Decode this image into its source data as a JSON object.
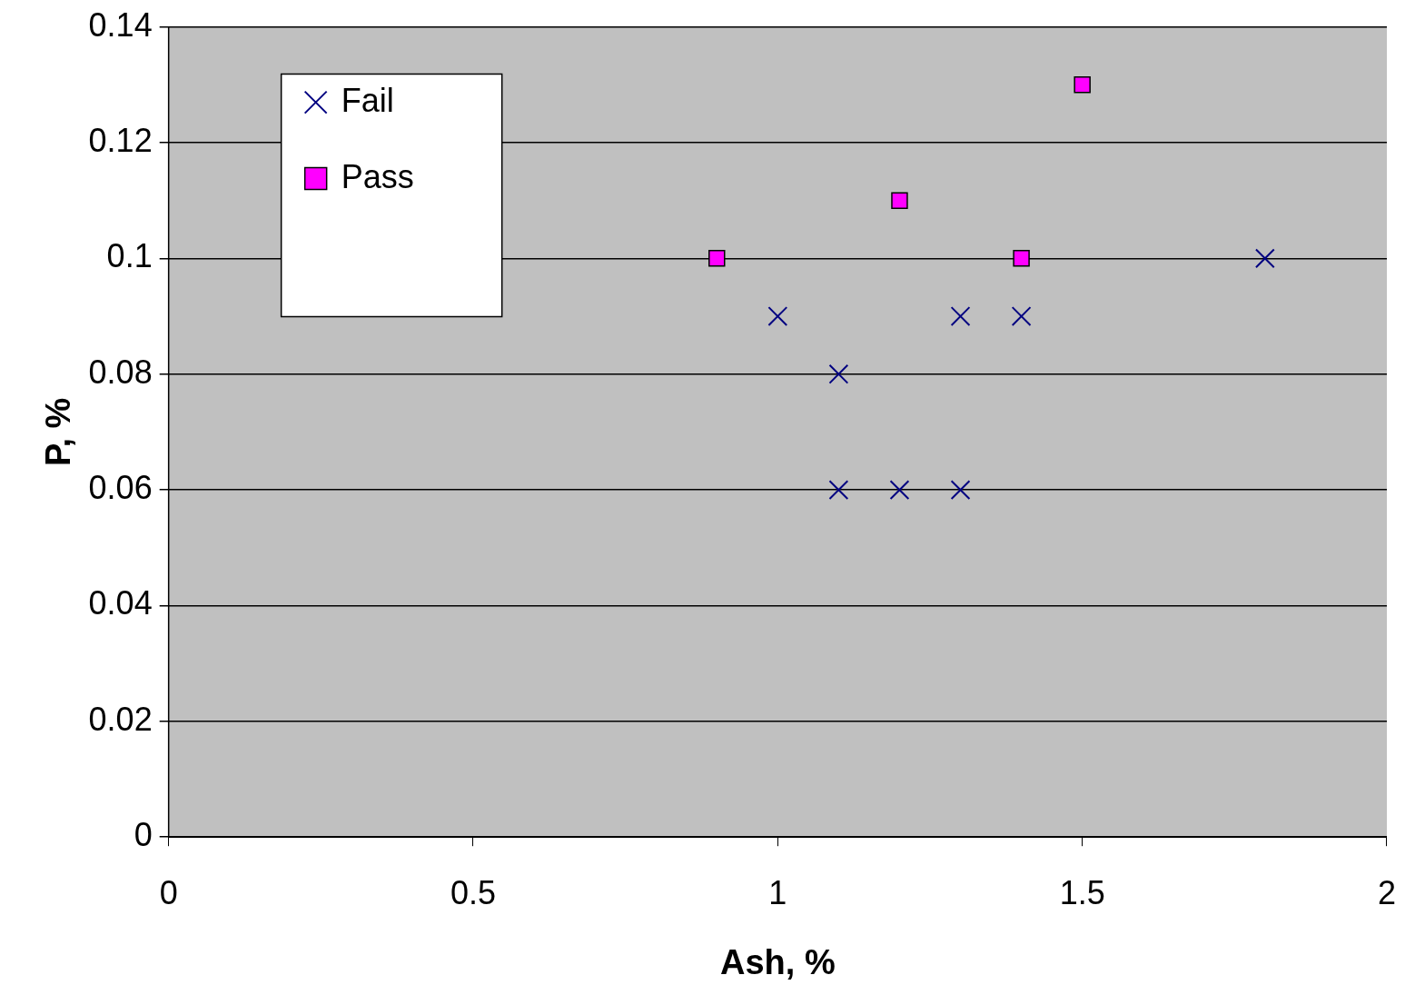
{
  "chart_data": {
    "type": "scatter",
    "xlabel": "Ash, %",
    "ylabel": "P, %",
    "xlim": [
      0,
      2
    ],
    "xticks": [
      0,
      0.5,
      1,
      1.5,
      2
    ],
    "ylim": [
      0,
      0.14
    ],
    "yticks": [
      0,
      0.02,
      0.04,
      0.06,
      0.08,
      0.1,
      0.12,
      0.14
    ],
    "grid": "y",
    "legend": "top left",
    "series": [
      {
        "name": "Fail",
        "color": "#000080",
        "marker": "cross",
        "x": [
          1.0,
          1.1,
          1.1,
          1.2,
          1.3,
          1.3,
          1.4,
          1.8
        ],
        "values": [
          0.09,
          0.08,
          0.06,
          0.06,
          0.06,
          0.09,
          0.09,
          0.1
        ]
      },
      {
        "name": "Pass",
        "color": "#ff00ff",
        "marker": "square",
        "x": [
          0.9,
          1.2,
          1.4,
          1.5
        ],
        "values": [
          0.1,
          0.11,
          0.1,
          0.13
        ]
      }
    ]
  }
}
